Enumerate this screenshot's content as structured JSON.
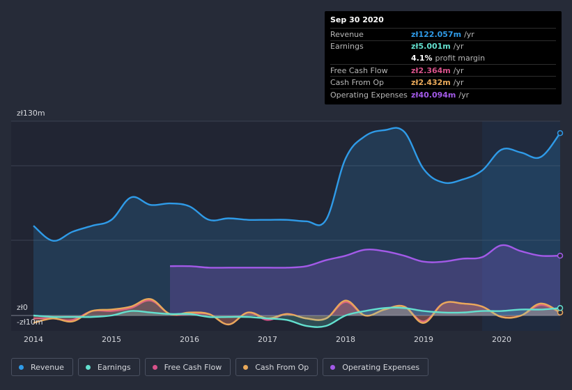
{
  "tooltip": {
    "date": "Sep 30 2020",
    "rows": [
      {
        "label": "Revenue",
        "value": "zł122.057m",
        "unit": "/yr",
        "color": "#2f9be8"
      },
      {
        "label": "Earnings",
        "value": "zł5.001m",
        "unit": "/yr",
        "color": "#63e0cf"
      },
      {
        "label": "",
        "value": "4.1%",
        "unit": "profit margin",
        "color": "#ffffff"
      },
      {
        "label": "Free Cash Flow",
        "value": "zł2.364m",
        "unit": "/yr",
        "color": "#d8528a"
      },
      {
        "label": "Cash From Op",
        "value": "zł2.432m",
        "unit": "/yr",
        "color": "#e9a95a"
      },
      {
        "label": "Operating Expenses",
        "value": "zł40.094m",
        "unit": "/yr",
        "color": "#a35ae8"
      }
    ]
  },
  "legend": [
    {
      "label": "Revenue",
      "color": "#2f9be8"
    },
    {
      "label": "Earnings",
      "color": "#63e0cf"
    },
    {
      "label": "Free Cash Flow",
      "color": "#d8528a"
    },
    {
      "label": "Cash From Op",
      "color": "#e9a95a"
    },
    {
      "label": "Operating Expenses",
      "color": "#a35ae8"
    }
  ],
  "chart_data": {
    "type": "area",
    "x_ticks": [
      "2014",
      "2015",
      "2016",
      "2017",
      "2018",
      "2019",
      "2020"
    ],
    "y_labels": {
      "top": "zł130m",
      "zero": "zł0",
      "bottom": "-zł10m"
    },
    "ylim": [
      -10,
      130
    ],
    "xlim": [
      2014.0,
      2020.75
    ],
    "forecast_start": 2019.75,
    "series": [
      {
        "name": "Revenue",
        "color": "#2f9be8",
        "points": [
          [
            2014.0,
            60
          ],
          [
            2014.25,
            50
          ],
          [
            2014.5,
            56
          ],
          [
            2014.75,
            60
          ],
          [
            2015.0,
            64
          ],
          [
            2015.25,
            79
          ],
          [
            2015.5,
            74
          ],
          [
            2015.75,
            75
          ],
          [
            2016.0,
            73
          ],
          [
            2016.25,
            64
          ],
          [
            2016.5,
            65
          ],
          [
            2016.75,
            64
          ],
          [
            2017.0,
            64
          ],
          [
            2017.25,
            64
          ],
          [
            2017.5,
            63
          ],
          [
            2017.75,
            64
          ],
          [
            2018.0,
            105
          ],
          [
            2018.25,
            120
          ],
          [
            2018.5,
            124
          ],
          [
            2018.75,
            123
          ],
          [
            2019.0,
            98
          ],
          [
            2019.25,
            89
          ],
          [
            2019.5,
            91
          ],
          [
            2019.75,
            97
          ],
          [
            2020.0,
            111
          ],
          [
            2020.25,
            109
          ],
          [
            2020.5,
            106
          ],
          [
            2020.75,
            122
          ]
        ]
      },
      {
        "name": "Operating Expenses",
        "color": "#a35ae8",
        "points": [
          [
            2015.75,
            33
          ],
          [
            2016.0,
            33
          ],
          [
            2016.25,
            32
          ],
          [
            2016.5,
            32
          ],
          [
            2016.75,
            32
          ],
          [
            2017.0,
            32
          ],
          [
            2017.25,
            32
          ],
          [
            2017.5,
            33
          ],
          [
            2017.75,
            37
          ],
          [
            2018.0,
            40
          ],
          [
            2018.25,
            44
          ],
          [
            2018.5,
            43
          ],
          [
            2018.75,
            40
          ],
          [
            2019.0,
            36
          ],
          [
            2019.25,
            36
          ],
          [
            2019.5,
            38
          ],
          [
            2019.75,
            39
          ],
          [
            2020.0,
            47
          ],
          [
            2020.25,
            43
          ],
          [
            2020.5,
            40
          ],
          [
            2020.75,
            40
          ]
        ]
      },
      {
        "name": "Free Cash Flow",
        "color": "#d8528a",
        "points": [
          [
            2014.0,
            -2
          ],
          [
            2014.25,
            -2
          ],
          [
            2014.5,
            -3
          ],
          [
            2014.75,
            3
          ],
          [
            2015.0,
            3
          ],
          [
            2015.25,
            5
          ],
          [
            2015.5,
            10
          ],
          [
            2015.75,
            1
          ],
          [
            2016.0,
            1
          ],
          [
            2016.25,
            1
          ],
          [
            2016.5,
            -6
          ],
          [
            2016.75,
            2
          ],
          [
            2017.0,
            -3
          ],
          [
            2017.25,
            1
          ],
          [
            2017.5,
            -2
          ],
          [
            2017.75,
            -2
          ],
          [
            2018.0,
            9
          ],
          [
            2018.25,
            0
          ],
          [
            2018.5,
            4
          ],
          [
            2018.75,
            6
          ],
          [
            2019.0,
            -4
          ],
          [
            2019.25,
            8
          ],
          [
            2019.5,
            8
          ],
          [
            2019.75,
            6
          ],
          [
            2020.0,
            -1
          ],
          [
            2020.25,
            0
          ],
          [
            2020.5,
            7
          ],
          [
            2020.75,
            2
          ]
        ]
      },
      {
        "name": "Cash From Op",
        "color": "#e9a95a",
        "points": [
          [
            2014.0,
            -5
          ],
          [
            2014.25,
            -2
          ],
          [
            2014.5,
            -4
          ],
          [
            2014.75,
            3
          ],
          [
            2015.0,
            4
          ],
          [
            2015.25,
            6
          ],
          [
            2015.5,
            11
          ],
          [
            2015.75,
            1
          ],
          [
            2016.0,
            2
          ],
          [
            2016.25,
            1
          ],
          [
            2016.5,
            -6
          ],
          [
            2016.75,
            2
          ],
          [
            2017.0,
            -2
          ],
          [
            2017.25,
            1
          ],
          [
            2017.5,
            -2
          ],
          [
            2017.75,
            -2
          ],
          [
            2018.0,
            10
          ],
          [
            2018.25,
            0
          ],
          [
            2018.5,
            4
          ],
          [
            2018.75,
            6
          ],
          [
            2019.0,
            -5
          ],
          [
            2019.25,
            8
          ],
          [
            2019.5,
            8
          ],
          [
            2019.75,
            6
          ],
          [
            2020.0,
            -1
          ],
          [
            2020.25,
            0
          ],
          [
            2020.5,
            8
          ],
          [
            2020.75,
            2
          ]
        ]
      },
      {
        "name": "Earnings",
        "color": "#63e0cf",
        "points": [
          [
            2014.0,
            0
          ],
          [
            2014.25,
            -1
          ],
          [
            2014.5,
            -1
          ],
          [
            2014.75,
            -1
          ],
          [
            2015.0,
            0
          ],
          [
            2015.25,
            3
          ],
          [
            2015.5,
            2
          ],
          [
            2015.75,
            1
          ],
          [
            2016.0,
            1
          ],
          [
            2016.25,
            -1
          ],
          [
            2016.5,
            -1
          ],
          [
            2016.75,
            -1
          ],
          [
            2017.0,
            -2
          ],
          [
            2017.25,
            -3
          ],
          [
            2017.5,
            -7
          ],
          [
            2017.75,
            -7
          ],
          [
            2018.0,
            0
          ],
          [
            2018.25,
            3
          ],
          [
            2018.5,
            5
          ],
          [
            2018.75,
            5
          ],
          [
            2019.0,
            3
          ],
          [
            2019.25,
            2
          ],
          [
            2019.5,
            2
          ],
          [
            2019.75,
            3
          ],
          [
            2020.0,
            3
          ],
          [
            2020.25,
            4
          ],
          [
            2020.5,
            4
          ],
          [
            2020.75,
            5
          ]
        ]
      }
    ]
  }
}
